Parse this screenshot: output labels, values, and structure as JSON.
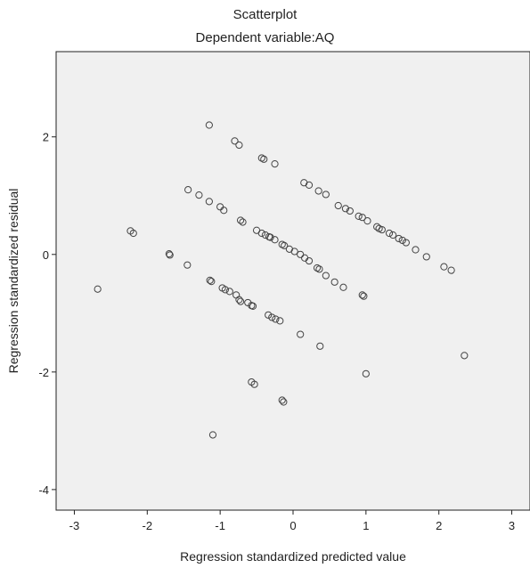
{
  "chart_data": {
    "type": "scatter",
    "title": "Scatterplot",
    "subtitle": "Dependent variable:AQ",
    "xlabel": "Regression standardized predicted value",
    "ylabel": "Regression standardized residual",
    "xlim": [
      -3.25,
      3.25
    ],
    "ylim": [
      -4.35,
      3.45
    ],
    "xticks": [
      -3,
      -2,
      -1,
      0,
      1,
      2,
      3
    ],
    "yticks": [
      -4,
      -2,
      0,
      2
    ],
    "grid": false,
    "legend": "none",
    "colors": {
      "plot_bg": "#f0f0f0",
      "marker": "#444444",
      "axis": "#222222"
    },
    "x": [
      -1.15,
      -0.8,
      -0.74,
      -0.43,
      -0.4,
      -0.25,
      0.15,
      0.22,
      0.35,
      0.45,
      0.62,
      0.72,
      0.78,
      0.9,
      0.95,
      1.02,
      1.15,
      1.18,
      1.22,
      1.32,
      1.37,
      1.45,
      1.5,
      1.55,
      1.68,
      1.83,
      2.07,
      2.17,
      -1.44,
      -1.29,
      -1.15,
      -1.0,
      -0.95,
      -0.72,
      -0.69,
      -0.5,
      -0.43,
      -0.38,
      -0.33,
      -0.31,
      -0.25,
      -0.15,
      -0.12,
      -0.05,
      0.02,
      0.1,
      0.16,
      0.22,
      0.33,
      0.36,
      0.45,
      0.57,
      0.69,
      0.95,
      0.97,
      -2.23,
      -2.19,
      -1.7,
      -1.69,
      -1.45,
      -1.14,
      -1.12,
      -0.97,
      -0.93,
      -0.87,
      -0.78,
      -0.74,
      -0.72,
      -0.62,
      -0.57,
      -0.55,
      -0.34,
      -0.29,
      -0.24,
      -0.18,
      0.1,
      0.37,
      -2.68,
      -0.57,
      -0.53,
      -0.15,
      -0.13,
      1.0,
      2.35,
      -1.1
    ],
    "y": [
      2.2,
      1.93,
      1.86,
      1.64,
      1.62,
      1.54,
      1.22,
      1.18,
      1.08,
      1.02,
      0.83,
      0.78,
      0.74,
      0.65,
      0.63,
      0.57,
      0.47,
      0.44,
      0.42,
      0.36,
      0.33,
      0.27,
      0.24,
      0.2,
      0.08,
      -0.04,
      -0.21,
      -0.27,
      1.1,
      1.01,
      0.9,
      0.81,
      0.75,
      0.58,
      0.55,
      0.41,
      0.36,
      0.33,
      0.3,
      0.29,
      0.25,
      0.17,
      0.15,
      0.09,
      0.05,
      0.0,
      -0.06,
      -0.11,
      -0.23,
      -0.25,
      -0.36,
      -0.47,
      -0.56,
      -0.69,
      -0.71,
      0.4,
      0.36,
      0.01,
      -0.01,
      -0.18,
      -0.44,
      -0.46,
      -0.57,
      -0.6,
      -0.63,
      -0.69,
      -0.77,
      -0.8,
      -0.82,
      -0.87,
      -0.88,
      -1.03,
      -1.07,
      -1.1,
      -1.13,
      -1.36,
      -1.56,
      -0.59,
      -2.17,
      -2.21,
      -2.48,
      -2.51,
      -2.03,
      -1.72,
      -3.07
    ]
  }
}
